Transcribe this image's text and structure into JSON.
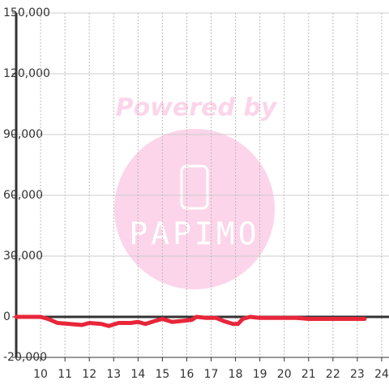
{
  "chart_data": {
    "type": "line",
    "x": [
      9,
      10,
      10.3,
      10.7,
      11.2,
      11.7,
      12,
      12.5,
      12.8,
      13.2,
      13.7,
      14,
      14.3,
      14.7,
      15,
      15.4,
      15.8,
      16.2,
      16.4,
      16.8,
      17.2,
      17.5,
      17.9,
      18.1,
      18.3,
      18.6,
      19,
      20,
      20.5,
      21,
      22,
      23.3
    ],
    "series": [
      {
        "color": "#e8263a",
        "values": [
          0,
          0,
          -1000,
          -3000,
          -3500,
          -4000,
          -3000,
          -3500,
          -4500,
          -3000,
          -3000,
          -2500,
          -3500,
          -2000,
          -1000,
          -2500,
          -2000,
          -1500,
          0,
          -500,
          -500,
          -2000,
          -3500,
          -3500,
          -1000,
          0,
          -500,
          -500,
          -500,
          -1000,
          -1000,
          -1000
        ]
      }
    ],
    "xlim": [
      9,
      24.3
    ],
    "xticks": [
      10,
      11,
      12,
      13,
      14,
      15,
      16,
      17,
      18,
      19,
      20,
      21,
      22,
      23,
      24
    ],
    "ylim": [
      -20000,
      150000
    ],
    "yticks": [
      {
        "value": -20000,
        "label": "-20,000"
      },
      0,
      {
        "value": 30000,
        "label": "30,000"
      },
      {
        "value": 60000,
        "label": "60,000"
      },
      {
        "value": 90000,
        "label": "90,000"
      },
      {
        "value": 120000,
        "label": "120,000"
      },
      {
        "value": 150000,
        "label": "150,000"
      }
    ],
    "grid": true
  },
  "watermark": {
    "text": "Powered by",
    "logo": "PAPIMO"
  }
}
